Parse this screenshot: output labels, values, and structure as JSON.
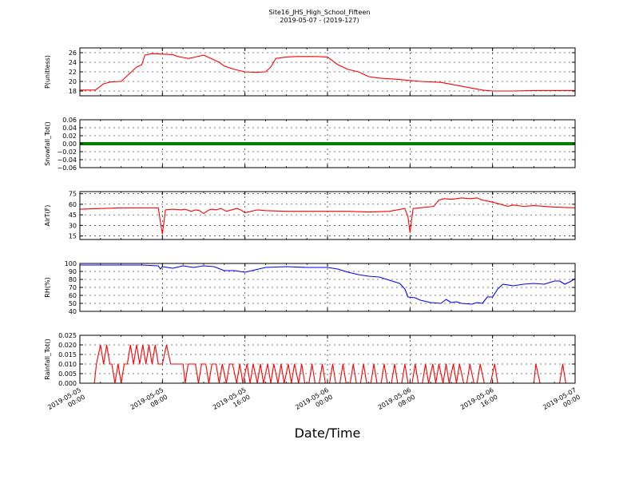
{
  "figure": {
    "title": "Site16_JHS_High_School_Fifteen",
    "subtitle": "2019-05-07 - (2019-127)",
    "xlabel": "Date/Time",
    "x_ticks": [
      "2019-05-05\n00:00",
      "2019-05-05\n08:00",
      "2019-05-05\n16:00",
      "2019-05-06\n00:00",
      "2019-05-06\n08:00",
      "2019-05-06\n16:00",
      "2019-05-07\n00:00"
    ],
    "x_range_hours": [
      0,
      48
    ]
  },
  "chart_data": [
    {
      "type": "line",
      "ylabel": "P(unitless)",
      "color": "#ff0000",
      "ylim": [
        17,
        27
      ],
      "yticks": [
        18,
        20,
        22,
        24,
        26
      ],
      "ytick_labels": [
        "18",
        "20",
        "22",
        "24",
        "26"
      ],
      "grid": true,
      "x_hours": [
        0,
        1.5,
        2.3,
        3,
        4,
        4.5,
        5,
        5.5,
        6,
        6.3,
        7,
        9,
        9.5,
        10,
        10.5,
        11,
        12,
        12.5,
        13,
        13.5,
        14,
        15,
        16,
        17,
        18,
        18.5,
        19,
        20,
        21,
        23,
        24,
        25,
        26,
        27,
        28,
        29,
        31,
        33,
        35,
        36,
        38,
        39,
        40,
        42,
        44,
        46,
        48
      ],
      "values": [
        18.2,
        18.2,
        19.5,
        19.9,
        20.0,
        21.0,
        22.0,
        23.0,
        23.5,
        25.5,
        25.8,
        25.6,
        25.2,
        25.0,
        24.8,
        25.0,
        25.5,
        25.0,
        24.5,
        24.0,
        23.2,
        22.5,
        22.0,
        21.9,
        22.0,
        23.0,
        24.8,
        25.1,
        25.2,
        25.2,
        25.1,
        23.5,
        22.5,
        22.0,
        21.0,
        20.7,
        20.4,
        20.0,
        19.8,
        19.4,
        18.6,
        18.2,
        18.0,
        18.0,
        18.1,
        18.1,
        18.1
      ]
    },
    {
      "type": "line",
      "ylabel": "Snowfall_Tot()",
      "color": "#008000",
      "ylim": [
        -0.06,
        0.06
      ],
      "yticks": [
        -0.06,
        -0.04,
        -0.02,
        0.0,
        0.02,
        0.04,
        0.06
      ],
      "ytick_labels": [
        "−0.06",
        "−0.04",
        "−0.02",
        "0.00",
        "0.02",
        "0.04",
        "0.06"
      ],
      "grid": true,
      "x_hours": [
        0,
        48
      ],
      "values": [
        0.0,
        0.0
      ]
    },
    {
      "type": "line",
      "ylabel": "AirT(F)",
      "color": "#ff0000",
      "ylim": [
        10,
        78
      ],
      "yticks": [
        15,
        30,
        45,
        60,
        75
      ],
      "ytick_labels": [
        "15",
        "30",
        "45",
        "60",
        "75"
      ],
      "grid": true,
      "x_hours": [
        0,
        2,
        4,
        6,
        7.6,
        7.8,
        8.0,
        8.3,
        9,
        9.8,
        10.2,
        10.8,
        11.2,
        11.6,
        12,
        12.5,
        12.8,
        13.2,
        13.7,
        14.2,
        15.2,
        15.6,
        16,
        16.6,
        17.2,
        18,
        20,
        22,
        24,
        26,
        28,
        30,
        31.5,
        31.8,
        32.0,
        32.3,
        33,
        34.3,
        34.8,
        35.3,
        36,
        37,
        37.8,
        38.5,
        39,
        40,
        41.5,
        42,
        43,
        44,
        46,
        48
      ],
      "values": [
        53,
        54,
        55,
        55,
        55,
        35,
        18,
        52,
        53,
        52,
        53,
        50,
        52,
        51,
        47,
        52,
        53,
        52,
        54,
        50,
        54,
        52,
        48,
        50,
        52,
        51,
        50,
        50,
        50,
        50,
        49,
        50,
        54,
        42,
        20,
        54,
        55,
        57,
        66,
        68,
        67,
        69,
        68,
        69,
        66,
        63,
        57,
        59,
        57,
        58,
        56,
        55
      ]
    },
    {
      "type": "line",
      "ylabel": "RH(%)",
      "color": "#0000ff",
      "ylim": [
        40,
        100
      ],
      "yticks": [
        40,
        50,
        60,
        70,
        80,
        90,
        100
      ],
      "ytick_labels": [
        "40",
        "50",
        "60",
        "70",
        "80",
        "90",
        "100"
      ],
      "grid": true,
      "x_hours": [
        0,
        3,
        6,
        7.6,
        7.8,
        8.0,
        9,
        10,
        11,
        12,
        13,
        14,
        15,
        16,
        17,
        18,
        20,
        22,
        24,
        25,
        26,
        27,
        28,
        29,
        30,
        31,
        31.5,
        31.8,
        32.5,
        33,
        34,
        35,
        35.5,
        36,
        36.5,
        37,
        38,
        38.5,
        39,
        39.5,
        40,
        40.5,
        41,
        42,
        43,
        44,
        45,
        46,
        46.5,
        47,
        47.5,
        48
      ],
      "values": [
        98,
        98,
        98,
        97,
        93,
        96,
        94,
        97,
        95,
        97,
        96,
        91,
        91,
        89,
        92,
        95,
        96,
        95,
        95,
        93,
        89,
        86,
        84,
        83,
        79,
        75,
        68,
        58,
        57,
        54,
        51,
        50,
        55,
        51,
        52,
        50,
        49,
        51,
        50,
        58,
        58,
        68,
        74,
        72,
        74,
        75,
        74,
        78,
        78,
        74,
        77,
        81
      ]
    },
    {
      "type": "line",
      "ylabel": "Rainfall_Tot()",
      "color": "#ff0000",
      "ylim": [
        0,
        0.025
      ],
      "yticks": [
        0.0,
        0.005,
        0.01,
        0.015,
        0.02,
        0.025
      ],
      "ytick_labels": [
        "0.000",
        "0.005",
        "0.010",
        "0.015",
        "0.020",
        "0.025"
      ],
      "grid": true,
      "x_hours": [
        0,
        1.4,
        1.6,
        2,
        2.3,
        2.6,
        2.9,
        3.1,
        3.4,
        3.7,
        4,
        4.3,
        4.6,
        4.9,
        5.2,
        5.5,
        5.8,
        6.1,
        6.4,
        6.7,
        7,
        7.3,
        7.6,
        8.0,
        8.4,
        8.8,
        9,
        9.2,
        9.6,
        10,
        10.2,
        10.5,
        10.8,
        11.2,
        11.5,
        11.8,
        12.2,
        12.5,
        12.8,
        13.2,
        13.5,
        13.8,
        14.2,
        14.5,
        14.8,
        15.2,
        15.5,
        15.8,
        16.2,
        16.5,
        16.8,
        17.2,
        17.5,
        17.8,
        18.2,
        18.5,
        18.8,
        19.2,
        19.5,
        19.8,
        20.2,
        20.5,
        20.8,
        21.2,
        21.5,
        21.8,
        22.2,
        22.5,
        22.8,
        23.2,
        23.5,
        23.8,
        24.2,
        24.5,
        24.8,
        25.2,
        25.5,
        25.8,
        26.2,
        26.5,
        26.8,
        27.2,
        27.5,
        27.8,
        28.2,
        28.5,
        28.8,
        29.2,
        29.5,
        29.8,
        30.2,
        30.5,
        30.8,
        31.2,
        31.5,
        31.8,
        32.2,
        32.5,
        32.8,
        33.2,
        33.5,
        33.8,
        34.2,
        34.5,
        34.8,
        35.2,
        35.5,
        35.8,
        36.2,
        36.5,
        36.8,
        37.2,
        37.5,
        37.8,
        38.2,
        38.5,
        38.8,
        39.2,
        39.5,
        39.8,
        40.2,
        40.5,
        40.8,
        41.2,
        41.5,
        44,
        44.2,
        44.6,
        45,
        46.5,
        46.8,
        47.1,
        48
      ],
      "values": [
        0,
        0,
        0.01,
        0.02,
        0.01,
        0.02,
        0.01,
        0.01,
        0,
        0.01,
        0,
        0.01,
        0.01,
        0.02,
        0.01,
        0.02,
        0.01,
        0.02,
        0.01,
        0.02,
        0.01,
        0.02,
        0.01,
        0.01,
        0.02,
        0.01,
        0.01,
        0.01,
        0.01,
        0.01,
        0,
        0.01,
        0.01,
        0.01,
        0,
        0.01,
        0.01,
        0,
        0.01,
        0.01,
        0,
        0.01,
        0,
        0.01,
        0.01,
        0,
        0.01,
        0,
        0.01,
        0,
        0.01,
        0,
        0.01,
        0,
        0.01,
        0,
        0.01,
        0,
        0.01,
        0,
        0.01,
        0,
        0.01,
        0,
        0.01,
        0,
        0,
        0.01,
        0,
        0,
        0.01,
        0,
        0,
        0.01,
        0,
        0,
        0.01,
        0,
        0,
        0.01,
        0,
        0,
        0.01,
        0,
        0,
        0.01,
        0,
        0,
        0.01,
        0,
        0,
        0.01,
        0,
        0,
        0.01,
        0,
        0,
        0.01,
        0,
        0,
        0.01,
        0,
        0.01,
        0,
        0.01,
        0,
        0.01,
        0,
        0.01,
        0,
        0.01,
        0,
        0,
        0.01,
        0,
        0,
        0.01,
        0,
        0,
        0,
        0.01,
        0,
        0,
        0,
        0,
        0,
        0.01,
        0,
        0,
        0,
        0.01,
        0,
        0
      ]
    }
  ]
}
